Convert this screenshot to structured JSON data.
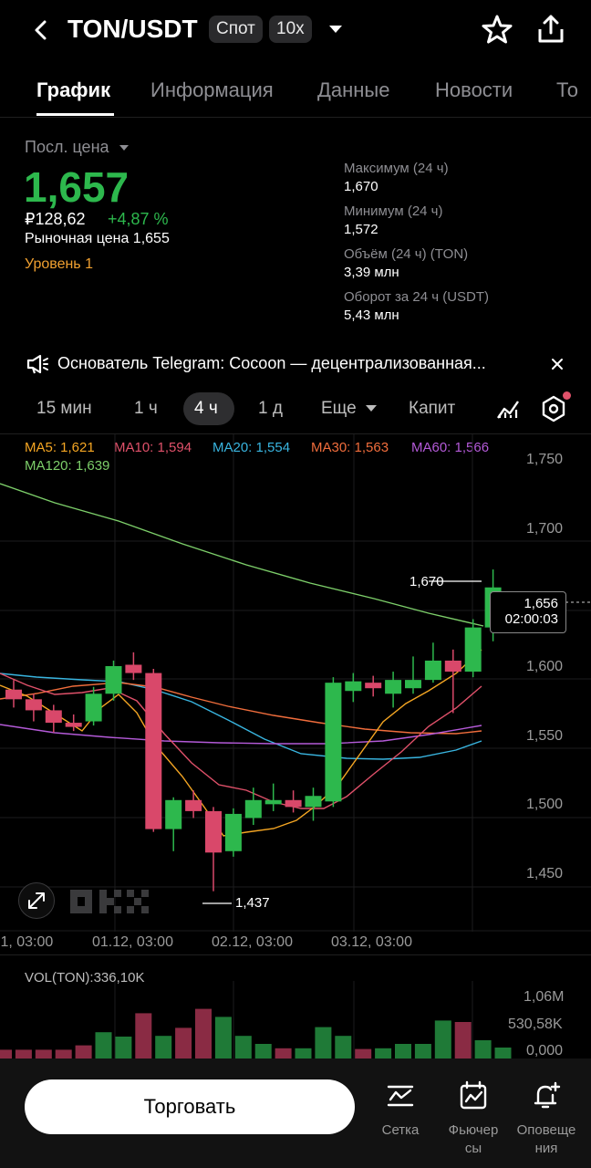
{
  "header": {
    "pair": "TON/USDT",
    "market_chip": "Спот",
    "leverage_chip": "10x"
  },
  "tabs": [
    "График",
    "Информация",
    "Данные",
    "Новости",
    "То"
  ],
  "price": {
    "label": "Посл. цена",
    "last": "1,657",
    "rub": "₽128,62",
    "change": "+4,87 %",
    "market": "Рыночная цена 1,655",
    "level": "Уровень 1"
  },
  "stats": [
    {
      "label": "Максимум (24 ч)",
      "value": "1,670"
    },
    {
      "label": "Минимум (24 ч)",
      "value": "1,572"
    },
    {
      "label": "Объём (24 ч) (TON)",
      "value": "3,39 млн"
    },
    {
      "label": "Оборот за 24 ч (USDT)",
      "value": "5,43 млн"
    }
  ],
  "news": "Основатель Telegram: Cocoon — децентрализованная...",
  "timeframes": [
    "15 мин",
    "1 ч",
    "4 ч",
    "1 д",
    "Еще",
    "Капит"
  ],
  "timeframe_active": "4 ч",
  "ma": {
    "ma5": "MA5: 1,621",
    "ma10": "MA10: 1,594",
    "ma20": "MA20: 1,554",
    "ma30": "MA30: 1,563",
    "ma60": "MA60: 1,566",
    "ma120": "MA120: 1,639"
  },
  "chart_labels": {
    "high": "1,670",
    "low": "1,437",
    "current_price": "1,656",
    "countdown": "02:00:03"
  },
  "yaxis": [
    "1,750",
    "1,700",
    "1,600",
    "1,550",
    "1,500",
    "1,450"
  ],
  "xaxis": [
    ".1, 03:00",
    "01.12, 03:00",
    "02.12, 03:00",
    "03.12, 03:00"
  ],
  "volume": {
    "label": "VOL(TON):336,10K",
    "y": [
      "1,06M",
      "530,58K",
      "0,000"
    ]
  },
  "bottom": {
    "trade": "Торговать",
    "grid": "Сетка",
    "futures": "Фьючер\nсы",
    "alerts": "Оповеще\nния"
  },
  "colors": {
    "up": "#2db84d",
    "down": "#d9486a",
    "accent_level": "#f0a030",
    "ma5": "#f5a623",
    "ma10": "#e0516a",
    "ma20": "#39b5e0",
    "ma30": "#f06d3c",
    "ma60": "#b45ad8",
    "ma120": "#7dcf6a"
  }
}
